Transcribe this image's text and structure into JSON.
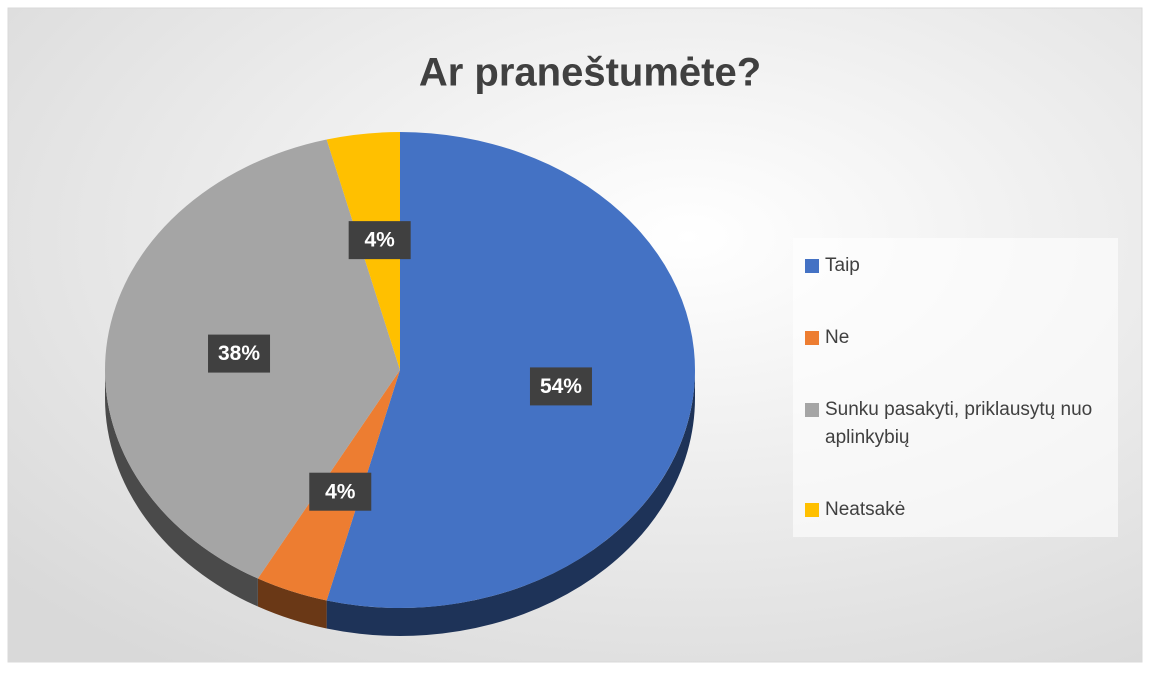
{
  "chart_data": {
    "type": "pie",
    "title": "Ar praneštumėte?",
    "categories": [
      "Taip",
      "Ne",
      "Sunku pasakyti, priklausytų nuo aplinkybių",
      "Neatsakė"
    ],
    "values": [
      54,
      4,
      38,
      4
    ],
    "value_labels": [
      "54%",
      "4%",
      "38%",
      "4%"
    ],
    "colors": [
      "#4472c4",
      "#ed7d31",
      "#a5a5a5",
      "#ffc000"
    ],
    "legend": "right"
  }
}
